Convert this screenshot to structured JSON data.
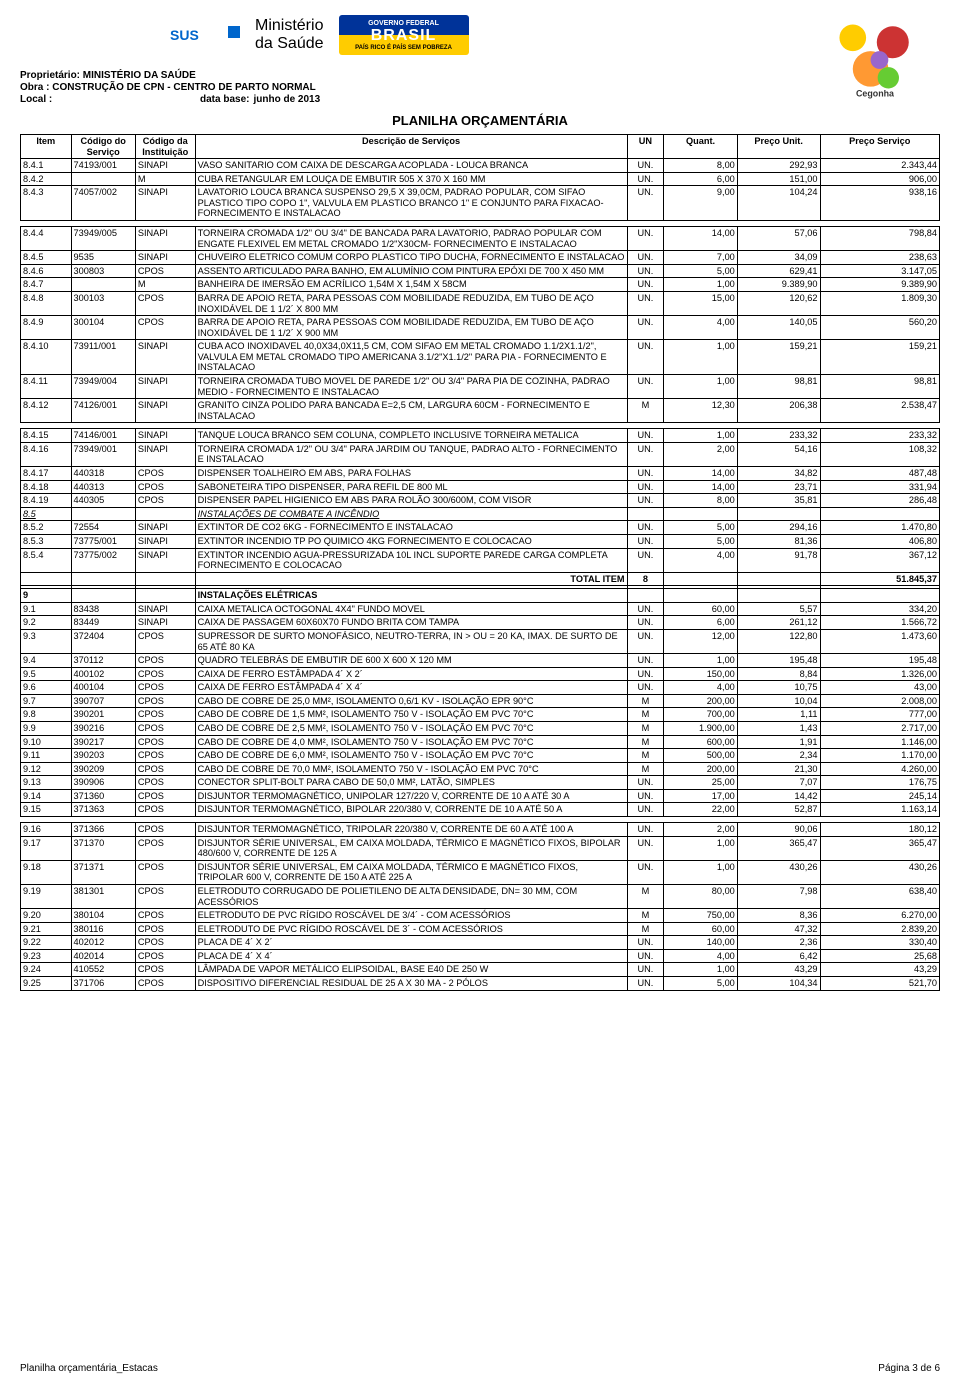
{
  "header": {
    "owner_label": "Proprietário:",
    "owner": "MINISTÉRIO DA SAÚDE",
    "obra_label": "Obra :",
    "obra": "CONSTRUÇÃO DE CPN - CENTRO DE PARTO NORMAL",
    "local_label": "Local :",
    "local_value": "",
    "database_label": "data base:",
    "database": "junho de 2013",
    "title": "PLANILHA ORÇAMENTÁRIA"
  },
  "columns": [
    "Item",
    "Código do Serviço",
    "Código da Instituição",
    "Descrição de Serviços",
    "UN",
    "Quant.",
    "Preço Unit.",
    "Preço Serviço"
  ],
  "rows": [
    {
      "item": "8.4.1",
      "cod": "74193/001",
      "inst": "SINAPI",
      "desc": "VASO SANITARIO COM CAIXA DE DESCARGA ACOPLADA - LOUCA BRANCA",
      "un": "UN.",
      "qt": "8,00",
      "pu": "292,93",
      "ps": "2.343,44"
    },
    {
      "item": "8.4.2",
      "cod": "",
      "inst": "M",
      "desc": "CUBA RETANGULAR EM LOUÇA DE EMBUTIR 505 X 370 X 160 MM",
      "un": "UN.",
      "qt": "6,00",
      "pu": "151,00",
      "ps": "906,00"
    },
    {
      "item": "8.4.3",
      "cod": "74057/002",
      "inst": "SINAPI",
      "desc": "LAVATORIO LOUCA BRANCA SUSPENSO 29,5 X 39,0CM, PADRAO POPULAR, COM SIFAO PLASTICO TIPO COPO 1\", VALVULA EM PLASTICO BRANCO 1\" E CONJUNTO PARA FIXACAO- FORNECIMENTO E INSTALACAO",
      "un": "UN.",
      "qt": "9,00",
      "pu": "104,24",
      "ps": "938,16"
    },
    {
      "item": "8.4.4",
      "cod": "73949/005",
      "inst": "SINAPI",
      "desc": "TORNEIRA CROMADA 1/2\" OU 3/4\" DE BANCADA PARA LAVATORIO, PADRAO POPULAR COM ENGATE FLEXIVEL EM METAL CROMADO 1/2\"X30CM- FORNECIMENTO E INSTALACAO",
      "un": "UN.",
      "qt": "14,00",
      "pu": "57,06",
      "ps": "798,84",
      "spacer": true
    },
    {
      "item": "8.4.5",
      "cod": "9535",
      "inst": "SINAPI",
      "desc": "CHUVEIRO ELETRICO COMUM CORPO PLASTICO TIPO DUCHA, FORNECIMENTO E INSTALACAO",
      "un": "UN.",
      "qt": "7,00",
      "pu": "34,09",
      "ps": "238,63"
    },
    {
      "item": "8.4.6",
      "cod": "300803",
      "inst": "CPOS",
      "desc": "ASSENTO ARTICULADO PARA BANHO, EM ALUMÍNIO COM PINTURA EPÓXI DE 700 X 450 MM",
      "un": "UN.",
      "qt": "5,00",
      "pu": "629,41",
      "ps": "3.147,05"
    },
    {
      "item": "8.4.7",
      "cod": "",
      "inst": "M",
      "desc": "BANHEIRA DE IMERSÃO EM ACRÍLICO 1,54M X 1,54M X 58CM",
      "un": "UN.",
      "qt": "1,00",
      "pu": "9.389,90",
      "ps": "9.389,90"
    },
    {
      "item": "8.4.8",
      "cod": "300103",
      "inst": "CPOS",
      "desc": "BARRA DE APOIO RETA, PARA PESSOAS COM MOBILIDADE REDUZIDA, EM TUBO DE AÇO INOXIDÁVEL DE 1 1/2´ X 800 MM",
      "un": "UN.",
      "qt": "15,00",
      "pu": "120,62",
      "ps": "1.809,30"
    },
    {
      "item": "8.4.9",
      "cod": "300104",
      "inst": "CPOS",
      "desc": "BARRA DE APOIO RETA, PARA PESSOAS COM MOBILIDADE REDUZIDA, EM TUBO DE AÇO INOXIDÁVEL DE 1 1/2´ X 900 MM",
      "un": "UN.",
      "qt": "4,00",
      "pu": "140,05",
      "ps": "560,20"
    },
    {
      "item": "8.4.10",
      "cod": "73911/001",
      "inst": "SINAPI",
      "desc": "CUBA ACO INOXIDAVEL 40,0X34,0X11,5 CM, COM SIFAO EM METAL CROMADO 1.1/2X1.1/2\", VALVULA EM METAL CROMADO TIPO AMERICANA 3.1/2\"X1.1/2\" PARA PIA - FORNECIMENTO E INSTALACAO",
      "un": "UN.",
      "qt": "1,00",
      "pu": "159,21",
      "ps": "159,21"
    },
    {
      "item": "8.4.11",
      "cod": "73949/004",
      "inst": "SINAPI",
      "desc": "TORNEIRA CROMADA TUBO MOVEL DE PAREDE 1/2\" OU 3/4\" PARA PIA DE COZINHA, PADRAO MEDIO - FORNECIMENTO E INSTALACAO",
      "un": "UN.",
      "qt": "1,00",
      "pu": "98,81",
      "ps": "98,81"
    },
    {
      "item": "8.4.12",
      "cod": "74126/001",
      "inst": "SINAPI",
      "desc": "GRANITO CINZA POLIDO PARA BANCADA E=2,5 CM, LARGURA 60CM - FORNECIMENTO E INSTALACAO",
      "un": "M",
      "qt": "12,30",
      "pu": "206,38",
      "ps": "2.538,47"
    },
    {
      "item": "8.4.15",
      "cod": "74146/001",
      "inst": "SINAPI",
      "desc": "TANQUE LOUCA BRANCO SEM COLUNA, COMPLETO INCLUSIVE TORNEIRA METALICA",
      "un": "UN.",
      "qt": "1,00",
      "pu": "233,32",
      "ps": "233,32",
      "spacer": true
    },
    {
      "item": "8.4.16",
      "cod": "73949/001",
      "inst": "SINAPI",
      "desc": "TORNEIRA CROMADA 1/2\" OU 3/4\" PARA JARDIM OU TANQUE, PADRAO ALTO - FORNECIMENTO E INSTALACAO",
      "un": "UN.",
      "qt": "2,00",
      "pu": "54,16",
      "ps": "108,32"
    },
    {
      "item": "8.4.17",
      "cod": "440318",
      "inst": "CPOS",
      "desc": "DISPENSER TOALHEIRO EM ABS, PARA FOLHAS",
      "un": "UN.",
      "qt": "14,00",
      "pu": "34,82",
      "ps": "487,48"
    },
    {
      "item": "8.4.18",
      "cod": "440313",
      "inst": "CPOS",
      "desc": "SABONETEIRA TIPO DISPENSER, PARA REFIL DE 800 ML",
      "un": "UN.",
      "qt": "14,00",
      "pu": "23,71",
      "ps": "331,94"
    },
    {
      "item": "8.4.19",
      "cod": "440305",
      "inst": "CPOS",
      "desc": "DISPENSER PAPEL HIGIENICO EM ABS PARA ROLÃO 300/600M, COM VISOR",
      "un": "UN.",
      "qt": "8,00",
      "pu": "35,81",
      "ps": "286,48"
    },
    {
      "item": "8.5",
      "cod": "",
      "inst": "",
      "desc": "INSTALAÇÕES DE COMBATE A INCÊNDIO",
      "un": "",
      "qt": "",
      "pu": "",
      "ps": "",
      "section": true
    },
    {
      "item": "8.5.2",
      "cod": "72554",
      "inst": "SINAPI",
      "desc": "EXTINTOR DE CO2 6KG - FORNECIMENTO E INSTALACAO",
      "un": "UN.",
      "qt": "5,00",
      "pu": "294,16",
      "ps": "1.470,80"
    },
    {
      "item": "8.5.3",
      "cod": "73775/001",
      "inst": "SINAPI",
      "desc": "EXTINTOR INCENDIO TP PO QUIMICO 4KG FORNECIMENTO E COLOCACAO",
      "un": "UN.",
      "qt": "5,00",
      "pu": "81,36",
      "ps": "406,80"
    },
    {
      "item": "8.5.4",
      "cod": "73775/002",
      "inst": "SINAPI",
      "desc": "EXTINTOR INCENDIO AGUA-PRESSURIZADA 10L INCL SUPORTE PAREDE CARGA COMPLETA FORNECIMENTO E COLOCACAO",
      "un": "UN.",
      "qt": "4,00",
      "pu": "91,78",
      "ps": "367,12"
    },
    {
      "item": "",
      "cod": "",
      "inst": "",
      "desc": "TOTAL ITEM",
      "un": "8",
      "qt": "",
      "pu": "",
      "ps": "51.845,37",
      "total": true
    },
    {
      "item": "",
      "cod": "",
      "inst": "",
      "desc": "",
      "un": "",
      "qt": "",
      "pu": "",
      "ps": "",
      "blank": true
    },
    {
      "item": "9",
      "cod": "",
      "inst": "",
      "desc": "INSTALAÇÕES ELÉTRICAS",
      "un": "",
      "qt": "",
      "pu": "",
      "ps": "",
      "bold": true
    },
    {
      "item": "9.1",
      "cod": "83438",
      "inst": "SINAPI",
      "desc": "CAIXA METALICA OCTOGONAL 4X4\" FUNDO MOVEL",
      "un": "UN.",
      "qt": "60,00",
      "pu": "5,57",
      "ps": "334,20"
    },
    {
      "item": "9.2",
      "cod": "83449",
      "inst": "SINAPI",
      "desc": "CAIXA DE PASSAGEM 60X60X70 FUNDO BRITA COM TAMPA",
      "un": "UN.",
      "qt": "6,00",
      "pu": "261,12",
      "ps": "1.566,72"
    },
    {
      "item": "9.3",
      "cod": "372404",
      "inst": "CPOS",
      "desc": "SUPRESSOR DE SURTO MONOFÁSICO, NEUTRO-TERRA, IN > OU = 20 KA, IMAX. DE SURTO DE 65 ATÉ 80 KA",
      "un": "UN.",
      "qt": "12,00",
      "pu": "122,80",
      "ps": "1.473,60"
    },
    {
      "item": "9.4",
      "cod": "370112",
      "inst": "CPOS",
      "desc": "QUADRO TELEBRÁS DE EMBUTIR DE 600 X 600 X 120 MM",
      "un": "UN.",
      "qt": "1,00",
      "pu": "195,48",
      "ps": "195,48"
    },
    {
      "item": "9.5",
      "cod": "400102",
      "inst": "CPOS",
      "desc": "CAIXA DE FERRO ESTÂMPADA 4´ X 2´",
      "un": "UN.",
      "qt": "150,00",
      "pu": "8,84",
      "ps": "1.326,00"
    },
    {
      "item": "9.6",
      "cod": "400104",
      "inst": "CPOS",
      "desc": "CAIXA DE FERRO ESTÂMPADA 4´ X 4´",
      "un": "UN.",
      "qt": "4,00",
      "pu": "10,75",
      "ps": "43,00"
    },
    {
      "item": "9.7",
      "cod": "390707",
      "inst": "CPOS",
      "desc": "CABO DE COBRE DE 25,0 MM², ISOLAMENTO 0,6/1 KV - ISOLAÇÃO EPR 90°C",
      "un": "M",
      "qt": "200,00",
      "pu": "10,04",
      "ps": "2.008,00"
    },
    {
      "item": "9.8",
      "cod": "390201",
      "inst": "CPOS",
      "desc": "CABO DE COBRE DE 1,5 MM², ISOLAMENTO 750 V - ISOLAÇÃO EM PVC 70°C",
      "un": "M",
      "qt": "700,00",
      "pu": "1,11",
      "ps": "777,00"
    },
    {
      "item": "9.9",
      "cod": "390216",
      "inst": "CPOS",
      "desc": "CABO DE COBRE DE 2,5 MM², ISOLAMENTO 750 V - ISOLAÇÃO EM PVC 70°C",
      "un": "M",
      "qt": "1.900,00",
      "pu": "1,43",
      "ps": "2.717,00"
    },
    {
      "item": "9.10",
      "cod": "390217",
      "inst": "CPOS",
      "desc": "CABO DE COBRE DE 4,0 MM², ISOLAMENTO 750 V - ISOLAÇÃO EM PVC 70°C",
      "un": "M",
      "qt": "600,00",
      "pu": "1,91",
      "ps": "1.146,00"
    },
    {
      "item": "9.11",
      "cod": "390203",
      "inst": "CPOS",
      "desc": "CABO DE COBRE DE 6,0 MM², ISOLAMENTO 750 V - ISOLAÇÃO EM PVC 70°C",
      "un": "M",
      "qt": "500,00",
      "pu": "2,34",
      "ps": "1.170,00"
    },
    {
      "item": "9.12",
      "cod": "390209",
      "inst": "CPOS",
      "desc": "CABO DE COBRE DE 70,0 MM², ISOLAMENTO 750 V - ISOLAÇÃO EM PVC 70°C",
      "un": "M",
      "qt": "200,00",
      "pu": "21,30",
      "ps": "4.260,00"
    },
    {
      "item": "9.13",
      "cod": "390906",
      "inst": "CPOS",
      "desc": "CONECTOR SPLIT-BOLT PARA CABO DE 50,0 MM², LATÃO, SIMPLES",
      "un": "UN.",
      "qt": "25,00",
      "pu": "7,07",
      "ps": "176,75"
    },
    {
      "item": "9.14",
      "cod": "371360",
      "inst": "CPOS",
      "desc": "DISJUNTOR TERMOMAGNÉTICO, UNIPOLAR 127/220 V, CORRENTE DE 10 A ATÉ 30 A",
      "un": "UN.",
      "qt": "17,00",
      "pu": "14,42",
      "ps": "245,14"
    },
    {
      "item": "9.15",
      "cod": "371363",
      "inst": "CPOS",
      "desc": "DISJUNTOR TERMOMAGNÉTICO, BIPOLAR 220/380 V, CORRENTE DE 10 A ATÉ 50 A",
      "un": "UN.",
      "qt": "22,00",
      "pu": "52,87",
      "ps": "1.163,14"
    },
    {
      "item": "9.16",
      "cod": "371366",
      "inst": "CPOS",
      "desc": "DISJUNTOR TERMOMAGNÉTICO, TRIPOLAR 220/380 V, CORRENTE DE 60 A ATÉ 100 A",
      "un": "UN.",
      "qt": "2,00",
      "pu": "90,06",
      "ps": "180,12",
      "spacer": true
    },
    {
      "item": "9.17",
      "cod": "371370",
      "inst": "CPOS",
      "desc": "DISJUNTOR SÉRIE UNIVERSAL, EM CAIXA MOLDADA, TÉRMICO E MAGNÉTICO FIXOS, BIPOLAR 480/600 V, CORRENTE DE 125 A",
      "un": "UN.",
      "qt": "1,00",
      "pu": "365,47",
      "ps": "365,47"
    },
    {
      "item": "9.18",
      "cod": "371371",
      "inst": "CPOS",
      "desc": "DISJUNTOR SÉRIE UNIVERSAL, EM CAIXA MOLDADA, TÉRMICO E MAGNÉTICO FIXOS, TRIPOLAR 600 V, CORRENTE DE 150 A ATÉ 225 A",
      "un": "UN.",
      "qt": "1,00",
      "pu": "430,26",
      "ps": "430,26"
    },
    {
      "item": "9.19",
      "cod": "381301",
      "inst": "CPOS",
      "desc": "ELETRODUTO CORRUGADO DE POLIETILENO DE ALTA DENSIDADE, DN= 30 MM, COM ACESSÓRIOS",
      "un": "M",
      "qt": "80,00",
      "pu": "7,98",
      "ps": "638,40"
    },
    {
      "item": "9.20",
      "cod": "380104",
      "inst": "CPOS",
      "desc": "ELETRODUTO DE PVC RÍGIDO ROSCÁVEL DE 3/4´ - COM ACESSÓRIOS",
      "un": "M",
      "qt": "750,00",
      "pu": "8,36",
      "ps": "6.270,00"
    },
    {
      "item": "9.21",
      "cod": "380116",
      "inst": "CPOS",
      "desc": "ELETRODUTO DE PVC RÍGIDO ROSCÁVEL DE 3´ - COM ACESSÓRIOS",
      "un": "M",
      "qt": "60,00",
      "pu": "47,32",
      "ps": "2.839,20"
    },
    {
      "item": "9.22",
      "cod": "402012",
      "inst": "CPOS",
      "desc": "PLACA DE 4´ X 2´",
      "un": "UN.",
      "qt": "140,00",
      "pu": "2,36",
      "ps": "330,40"
    },
    {
      "item": "9.23",
      "cod": "402014",
      "inst": "CPOS",
      "desc": "PLACA DE 4´ X 4´",
      "un": "UN.",
      "qt": "4,00",
      "pu": "6,42",
      "ps": "25,68"
    },
    {
      "item": "9.24",
      "cod": "410552",
      "inst": "CPOS",
      "desc": "LÂMPADA DE VAPOR METÁLICO ELIPSOIDAL, BASE E40 DE 250 W",
      "un": "UN.",
      "qt": "1,00",
      "pu": "43,29",
      "ps": "43,29"
    },
    {
      "item": "9.25",
      "cod": "371706",
      "inst": "CPOS",
      "desc": "DISPOSITIVO DIFERENCIAL RESIDUAL DE 25 A X 30 MA - 2 PÓLOS",
      "un": "UN.",
      "qt": "5,00",
      "pu": "104,34",
      "ps": "521,70"
    }
  ],
  "footer_left": "Planilha orçamentária_Estacas",
  "footer_right": "Página 3 de 6"
}
